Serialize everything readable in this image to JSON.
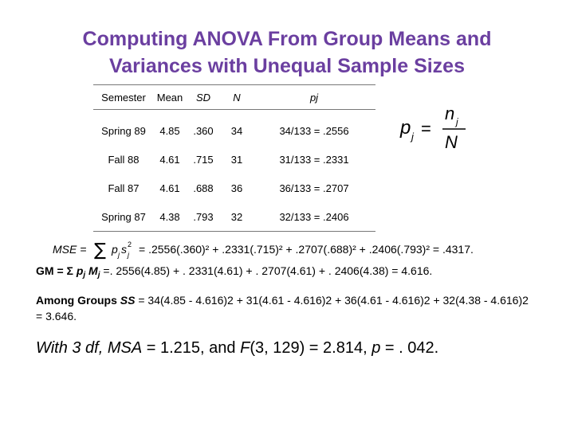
{
  "title": {
    "line1": "Computing ANOVA From Group Means and",
    "line2": "Variances with Unequal Sample Sizes"
  },
  "table": {
    "headers": [
      "Semester",
      "Mean",
      "SD",
      "N",
      "pj"
    ],
    "rows": [
      {
        "semester": "Spring 89",
        "mean": "4.85",
        "sd": ".360",
        "n": "34",
        "pj": "34/133 = .2556"
      },
      {
        "semester": "Fall 88",
        "mean": "4.61",
        "sd": ".715",
        "n": "31",
        "pj": "31/133 = .2331"
      },
      {
        "semester": "Fall 87",
        "mean": "4.61",
        "sd": ".688",
        "n": "36",
        "pj": "36/133 = .2707"
      },
      {
        "semester": "Spring 87",
        "mean": "4.38",
        "sd": ".793",
        "n": "32",
        "pj": "32/133 = .2406"
      }
    ]
  },
  "formula_pj": {
    "lhs": "p",
    "lhs_sub": "j",
    "eq": "=",
    "num": "n",
    "num_sub": "j",
    "den": "N"
  },
  "mse_line": {
    "prefix": "MSE =",
    "sum": "∑",
    "term": "p",
    "sub": "j",
    "term2": "s",
    "sup": "2",
    "body": "= .2556(.360)² + .2331(.715)² + .2707(.688)² + .2406(.793)² = .4317."
  },
  "gm_line": {
    "label": "GM = Σ",
    "p": "p",
    "psub": "j",
    "m": "M",
    "msub": "j",
    "rest": " =. 2556(4.85) + . 2331(4.61) + . 2707(4.61) + . 2406(4.38) = 4.616."
  },
  "among_line": {
    "label": "Among Groups ",
    "ss": "SS",
    "text": " = 34(4.85 ‐ 4.616)2 + 31(4.61 ‐ 4.616)2 + 36(4.61 ‐ 4.616)2 + 32(4.38 ‐ 4.616)2 = 3.646."
  },
  "conclusion": {
    "text_a": "With 3 df, MSA",
    "text_b": " = 1.215, and ",
    "f": "F",
    "text_c": "(3, 129) = 2.814, ",
    "p": "p",
    "text_d": " = . 042."
  }
}
